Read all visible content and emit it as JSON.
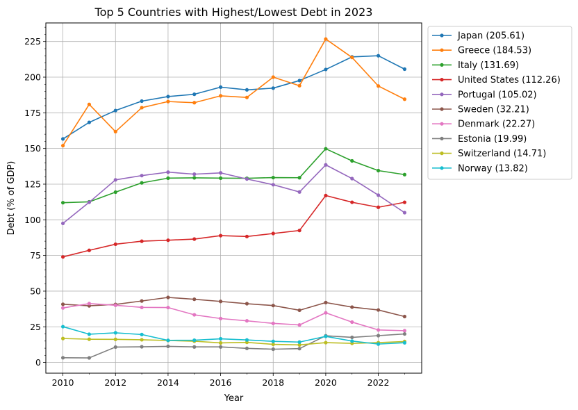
{
  "chart_data": {
    "type": "line",
    "title": "Top 5 Countries with Highest/Lowest Debt in 2023",
    "xlabel": "Year",
    "ylabel": "Debt (% of GDP)",
    "x": [
      2010,
      2011,
      2012,
      2013,
      2014,
      2015,
      2016,
      2017,
      2018,
      2019,
      2020,
      2021,
      2022,
      2023
    ],
    "xlim": [
      2009.35,
      2023.65
    ],
    "ylim": [
      -7.5,
      238
    ],
    "x_ticks": [
      2010,
      2012,
      2014,
      2016,
      2018,
      2020,
      2022
    ],
    "y_ticks": [
      0,
      25,
      50,
      75,
      100,
      125,
      150,
      175,
      200,
      225
    ],
    "grid": true,
    "legend_position": "outside upper right",
    "series": [
      {
        "name": "Japan (205.61)",
        "color": "#1f77b4",
        "values": [
          156.7,
          168.3,
          176.6,
          183.2,
          186.4,
          188.0,
          193.0,
          191.1,
          192.3,
          197.6,
          205.4,
          214.2,
          215.0,
          205.61
        ]
      },
      {
        "name": "Greece (184.53)",
        "color": "#ff7f0e",
        "values": [
          152.0,
          180.9,
          161.8,
          178.6,
          182.9,
          182.1,
          186.9,
          185.8,
          200.0,
          194.0,
          226.7,
          213.8,
          193.8,
          184.53
        ]
      },
      {
        "name": "Italy (131.69)",
        "color": "#2ca02c",
        "values": [
          112.0,
          112.6,
          119.4,
          125.9,
          129.2,
          129.4,
          129.2,
          129.1,
          129.6,
          129.5,
          149.8,
          141.3,
          134.5,
          131.69
        ]
      },
      {
        "name": "United States (112.26)",
        "color": "#d62728",
        "values": [
          74.0,
          78.6,
          82.9,
          85.0,
          85.7,
          86.5,
          88.9,
          88.3,
          90.4,
          92.5,
          117.0,
          112.3,
          108.8,
          112.26
        ]
      },
      {
        "name": "Portugal (105.02)",
        "color": "#9467bd",
        "values": [
          97.5,
          112.3,
          128.0,
          131.0,
          133.4,
          132.0,
          132.9,
          128.6,
          124.6,
          119.5,
          138.5,
          128.9,
          117.3,
          105.02
        ]
      },
      {
        "name": "Sweden (32.21)",
        "color": "#8c564b",
        "values": [
          40.8,
          39.7,
          40.7,
          43.1,
          45.6,
          44.3,
          42.8,
          41.2,
          39.9,
          36.6,
          42.0,
          38.8,
          36.8,
          32.21
        ]
      },
      {
        "name": "Denmark (22.27)",
        "color": "#e377c2",
        "values": [
          38.2,
          41.3,
          40.1,
          38.6,
          38.5,
          33.4,
          30.8,
          29.2,
          27.4,
          26.3,
          34.8,
          28.3,
          22.8,
          22.27
        ]
      },
      {
        "name": "Estonia (19.99)",
        "color": "#7f7f7f",
        "values": [
          3.3,
          3.2,
          10.8,
          11.0,
          11.3,
          10.9,
          10.9,
          9.9,
          9.3,
          9.7,
          18.7,
          17.6,
          18.8,
          19.99
        ]
      },
      {
        "name": "Switzerland (14.71)",
        "color": "#bcbd22",
        "values": [
          16.8,
          16.3,
          16.2,
          15.9,
          15.4,
          14.9,
          13.7,
          14.1,
          12.7,
          12.3,
          13.9,
          13.4,
          13.9,
          14.71
        ]
      },
      {
        "name": "Norway (13.82)",
        "color": "#17becf",
        "values": [
          25.1,
          19.8,
          20.8,
          19.6,
          15.5,
          15.6,
          16.6,
          15.8,
          14.8,
          14.3,
          18.3,
          15.0,
          12.9,
          13.82
        ]
      }
    ]
  }
}
